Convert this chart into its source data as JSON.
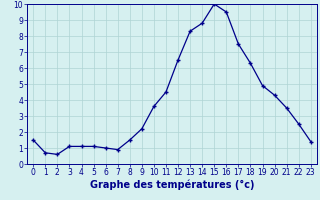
{
  "x": [
    0,
    1,
    2,
    3,
    4,
    5,
    6,
    7,
    8,
    9,
    10,
    11,
    12,
    13,
    14,
    15,
    16,
    17,
    18,
    19,
    20,
    21,
    22,
    23
  ],
  "y": [
    1.5,
    0.7,
    0.6,
    1.1,
    1.1,
    1.1,
    1.0,
    0.9,
    1.5,
    2.2,
    3.6,
    4.5,
    6.5,
    8.3,
    8.8,
    10.0,
    9.5,
    7.5,
    6.3,
    4.9,
    4.3,
    3.5,
    2.5,
    1.4
  ],
  "line_color": "#00008b",
  "marker": "+",
  "marker_size": 3.5,
  "bg_color": "#d6f0f0",
  "grid_color": "#afd4d4",
  "xlabel": "Graphe des températures (°c)",
  "xlabel_color": "#00008b",
  "xlabel_fontsize": 7,
  "tick_color": "#00008b",
  "tick_fontsize": 5.5,
  "ylim": [
    0,
    10
  ],
  "xlim_min": -0.5,
  "xlim_max": 23.5,
  "yticks": [
    0,
    1,
    2,
    3,
    4,
    5,
    6,
    7,
    8,
    9,
    10
  ],
  "xticks": [
    0,
    1,
    2,
    3,
    4,
    5,
    6,
    7,
    8,
    9,
    10,
    11,
    12,
    13,
    14,
    15,
    16,
    17,
    18,
    19,
    20,
    21,
    22,
    23
  ]
}
